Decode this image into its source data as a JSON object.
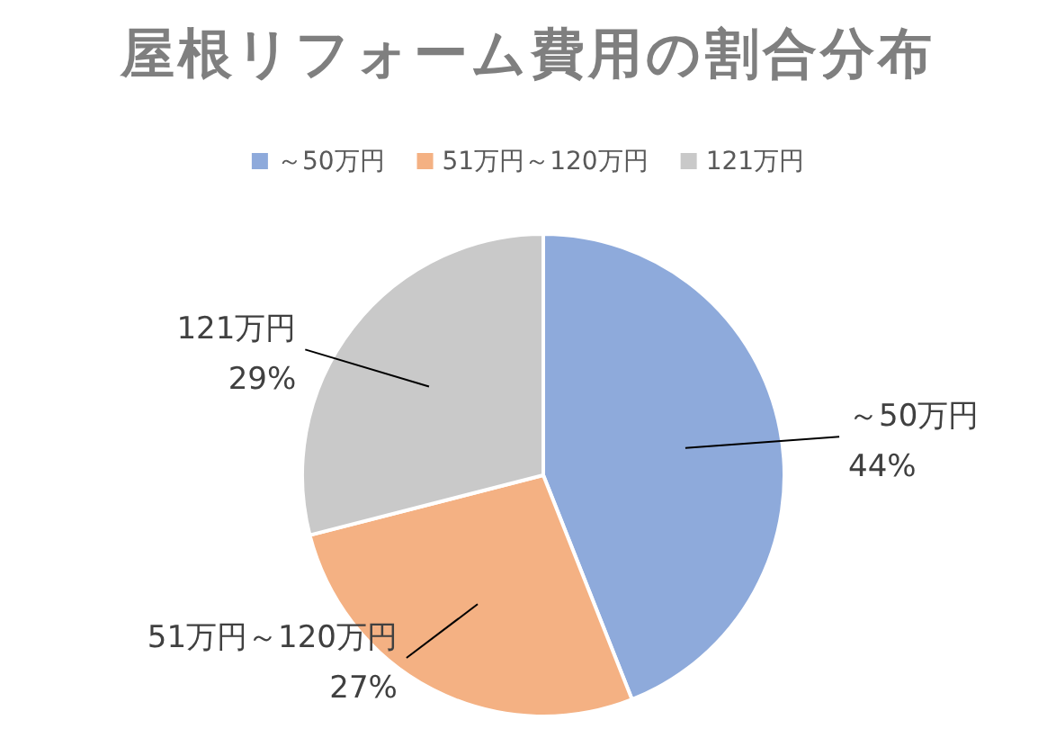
{
  "chart_data": {
    "type": "pie",
    "title": "屋根リフォーム費用の割合分布",
    "categories": [
      "～50万円",
      "51万円～120万円",
      "121万円"
    ],
    "values": [
      44,
      27,
      29
    ],
    "value_labels": [
      "44%",
      "27%",
      "29%"
    ],
    "colors": [
      "#8eaadb",
      "#f4b183",
      "#c9c9c9"
    ],
    "legend": "top"
  }
}
